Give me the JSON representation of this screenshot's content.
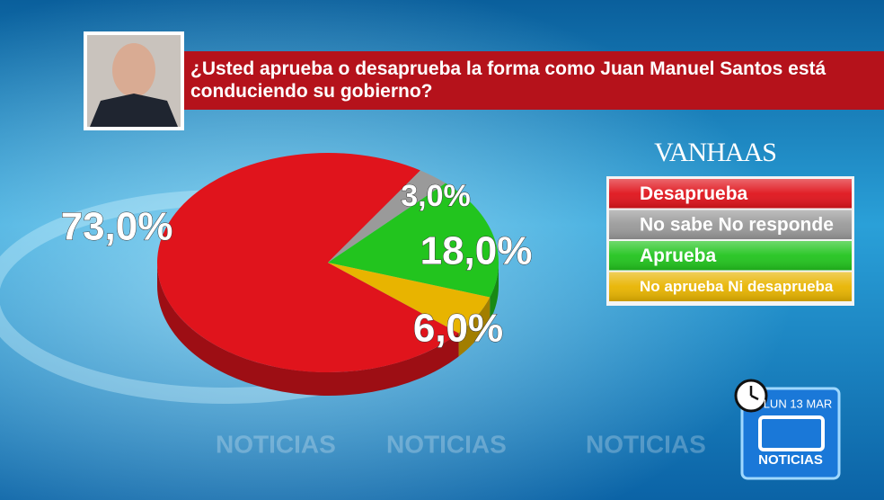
{
  "chart_data": {
    "type": "pie",
    "title": "¿Usted aprueba o desaprueba la forma como Juan Manuel Santos está conduciendo su gobierno?",
    "categories": [
      "Desaprueba",
      "No sabe No responde",
      "Aprueba",
      "No aprueba Ni desaprueba"
    ],
    "values": [
      73,
      3,
      18,
      6
    ],
    "value_labels": [
      "73,0%",
      "3,0%",
      "18,0%",
      "6,0%"
    ],
    "colors": [
      "#e0141c",
      "#9a9a9a",
      "#22c41e",
      "#e8b400"
    ],
    "source": "VANHAAS",
    "date": "LUN 13 MAR",
    "channel": "NOTICIAS"
  }
}
